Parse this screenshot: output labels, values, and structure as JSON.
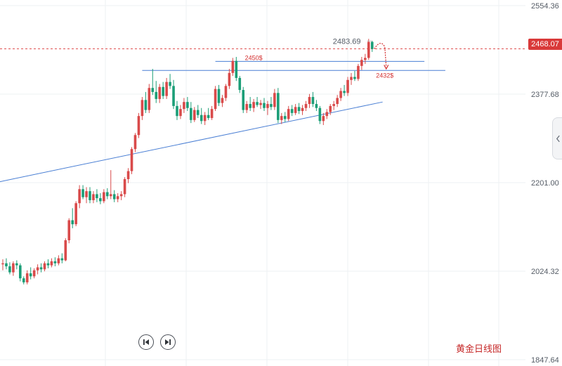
{
  "chart_data": {
    "type": "candlestick",
    "title": "黄金日线图",
    "y_axis": {
      "ticks": [
        "2554.36",
        "2377.68",
        "2201.00",
        "2024.32",
        "1847.64"
      ],
      "tick_values": [
        2554.36,
        2377.68,
        2201.0,
        2024.32,
        1847.64
      ],
      "range": [
        1847.64,
        2554.36
      ]
    },
    "current_price": "2468.07",
    "current_price_value": 2468.07,
    "annotations": {
      "recent_high": "2483.69",
      "resistance_level": "2450$",
      "target_level": "2432$"
    },
    "colors": {
      "up": "#d94a4a",
      "down": "#1b9e77",
      "trendline": "#4a7fd4",
      "price_line": "#e05050"
    },
    "candles": [
      [
        2038,
        2048,
        2026,
        2040
      ],
      [
        2040,
        2050,
        2028,
        2034
      ],
      [
        2034,
        2042,
        2018,
        2022
      ],
      [
        2022,
        2044,
        2015,
        2040
      ],
      [
        2040,
        2046,
        2028,
        2036
      ],
      [
        2036,
        2040,
        2004,
        2010
      ],
      [
        2010,
        2014,
        1998,
        2002
      ],
      [
        2002,
        2026,
        1998,
        2020
      ],
      [
        2020,
        2032,
        2008,
        2014
      ],
      [
        2014,
        2030,
        2010,
        2026
      ],
      [
        2026,
        2038,
        2018,
        2032
      ],
      [
        2032,
        2040,
        2022,
        2028
      ],
      [
        2028,
        2044,
        2024,
        2040
      ],
      [
        2040,
        2048,
        2030,
        2036
      ],
      [
        2036,
        2050,
        2032,
        2044
      ],
      [
        2044,
        2052,
        2034,
        2040
      ],
      [
        2040,
        2056,
        2036,
        2050
      ],
      [
        2050,
        2060,
        2040,
        2046
      ],
      [
        2046,
        2090,
        2044,
        2086
      ],
      [
        2086,
        2130,
        2080,
        2126
      ],
      [
        2126,
        2150,
        2110,
        2118
      ],
      [
        2118,
        2164,
        2114,
        2160
      ],
      [
        2160,
        2196,
        2150,
        2188
      ],
      [
        2188,
        2196,
        2168,
        2172
      ],
      [
        2172,
        2192,
        2160,
        2184
      ],
      [
        2184,
        2192,
        2160,
        2166
      ],
      [
        2166,
        2184,
        2160,
        2178
      ],
      [
        2178,
        2188,
        2162,
        2170
      ],
      [
        2170,
        2180,
        2158,
        2164
      ],
      [
        2164,
        2188,
        2160,
        2182
      ],
      [
        2182,
        2190,
        2168,
        2174
      ],
      [
        2174,
        2226,
        2168,
        2178
      ],
      [
        2178,
        2186,
        2162,
        2168
      ],
      [
        2168,
        2180,
        2162,
        2174
      ],
      [
        2174,
        2184,
        2166,
        2178
      ],
      [
        2178,
        2212,
        2172,
        2208
      ],
      [
        2208,
        2230,
        2200,
        2224
      ],
      [
        2224,
        2272,
        2218,
        2268
      ],
      [
        2268,
        2300,
        2262,
        2296
      ],
      [
        2296,
        2340,
        2290,
        2334
      ],
      [
        2334,
        2372,
        2326,
        2366
      ],
      [
        2366,
        2382,
        2340,
        2346
      ],
      [
        2346,
        2398,
        2340,
        2390
      ],
      [
        2390,
        2428,
        2376,
        2382
      ],
      [
        2382,
        2404,
        2360,
        2368
      ],
      [
        2368,
        2398,
        2360,
        2392
      ],
      [
        2392,
        2402,
        2368,
        2374
      ],
      [
        2374,
        2410,
        2368,
        2402
      ],
      [
        2402,
        2418,
        2388,
        2394
      ],
      [
        2394,
        2406,
        2348,
        2354
      ],
      [
        2354,
        2364,
        2326,
        2334
      ],
      [
        2334,
        2356,
        2328,
        2348
      ],
      [
        2348,
        2370,
        2340,
        2362
      ],
      [
        2362,
        2372,
        2344,
        2350
      ],
      [
        2350,
        2362,
        2320,
        2326
      ],
      [
        2326,
        2352,
        2322,
        2346
      ],
      [
        2346,
        2356,
        2330,
        2336
      ],
      [
        2336,
        2350,
        2318,
        2324
      ],
      [
        2324,
        2342,
        2316,
        2336
      ],
      [
        2336,
        2350,
        2326,
        2330
      ],
      [
        2330,
        2354,
        2326,
        2348
      ],
      [
        2348,
        2394,
        2344,
        2388
      ],
      [
        2388,
        2396,
        2354,
        2360
      ],
      [
        2360,
        2376,
        2352,
        2370
      ],
      [
        2370,
        2398,
        2364,
        2394
      ],
      [
        2394,
        2428,
        2388,
        2420
      ],
      [
        2420,
        2450,
        2414,
        2444
      ],
      [
        2444,
        2452,
        2404,
        2410
      ],
      [
        2410,
        2414,
        2380,
        2386
      ],
      [
        2386,
        2392,
        2340,
        2346
      ],
      [
        2346,
        2364,
        2340,
        2358
      ],
      [
        2358,
        2372,
        2344,
        2350
      ],
      [
        2350,
        2368,
        2342,
        2362
      ],
      [
        2362,
        2372,
        2352,
        2356
      ],
      [
        2356,
        2366,
        2348,
        2360
      ],
      [
        2360,
        2370,
        2344,
        2350
      ],
      [
        2350,
        2364,
        2336,
        2358
      ],
      [
        2358,
        2372,
        2346,
        2352
      ],
      [
        2352,
        2388,
        2346,
        2380
      ],
      [
        2380,
        2390,
        2320,
        2326
      ],
      [
        2326,
        2340,
        2318,
        2334
      ],
      [
        2334,
        2342,
        2322,
        2328
      ],
      [
        2328,
        2354,
        2324,
        2348
      ],
      [
        2348,
        2356,
        2334,
        2340
      ],
      [
        2340,
        2358,
        2336,
        2352
      ],
      [
        2352,
        2360,
        2338,
        2344
      ],
      [
        2344,
        2356,
        2336,
        2350
      ],
      [
        2350,
        2364,
        2344,
        2358
      ],
      [
        2358,
        2378,
        2350,
        2372
      ],
      [
        2372,
        2382,
        2352,
        2358
      ],
      [
        2358,
        2366,
        2344,
        2350
      ],
      [
        2350,
        2354,
        2318,
        2324
      ],
      [
        2324,
        2340,
        2316,
        2334
      ],
      [
        2334,
        2348,
        2328,
        2342
      ],
      [
        2342,
        2358,
        2336,
        2354
      ],
      [
        2354,
        2364,
        2346,
        2358
      ],
      [
        2358,
        2376,
        2352,
        2370
      ],
      [
        2370,
        2390,
        2364,
        2384
      ],
      [
        2384,
        2396,
        2374,
        2380
      ],
      [
        2380,
        2412,
        2374,
        2406
      ],
      [
        2406,
        2420,
        2396,
        2412
      ],
      [
        2412,
        2424,
        2404,
        2408
      ],
      [
        2408,
        2438,
        2404,
        2434
      ],
      [
        2434,
        2452,
        2426,
        2446
      ],
      [
        2446,
        2458,
        2438,
        2450
      ],
      [
        2450,
        2488,
        2446,
        2482
      ],
      [
        2482,
        2484,
        2462,
        2468
      ]
    ],
    "trendlines": [
      {
        "name": "ascending-support",
        "from": [
          0,
          2203
        ],
        "to": [
          109,
          2362
        ]
      },
      {
        "name": "resistance-upper",
        "from": [
          61,
          2443
        ],
        "to": [
          121,
          2443
        ]
      },
      {
        "name": "resistance-lower",
        "from": [
          40,
          2425
        ],
        "to": [
          127,
          2425
        ]
      }
    ]
  },
  "nav": {
    "prev_label": "Previous",
    "next_label": "Next"
  }
}
